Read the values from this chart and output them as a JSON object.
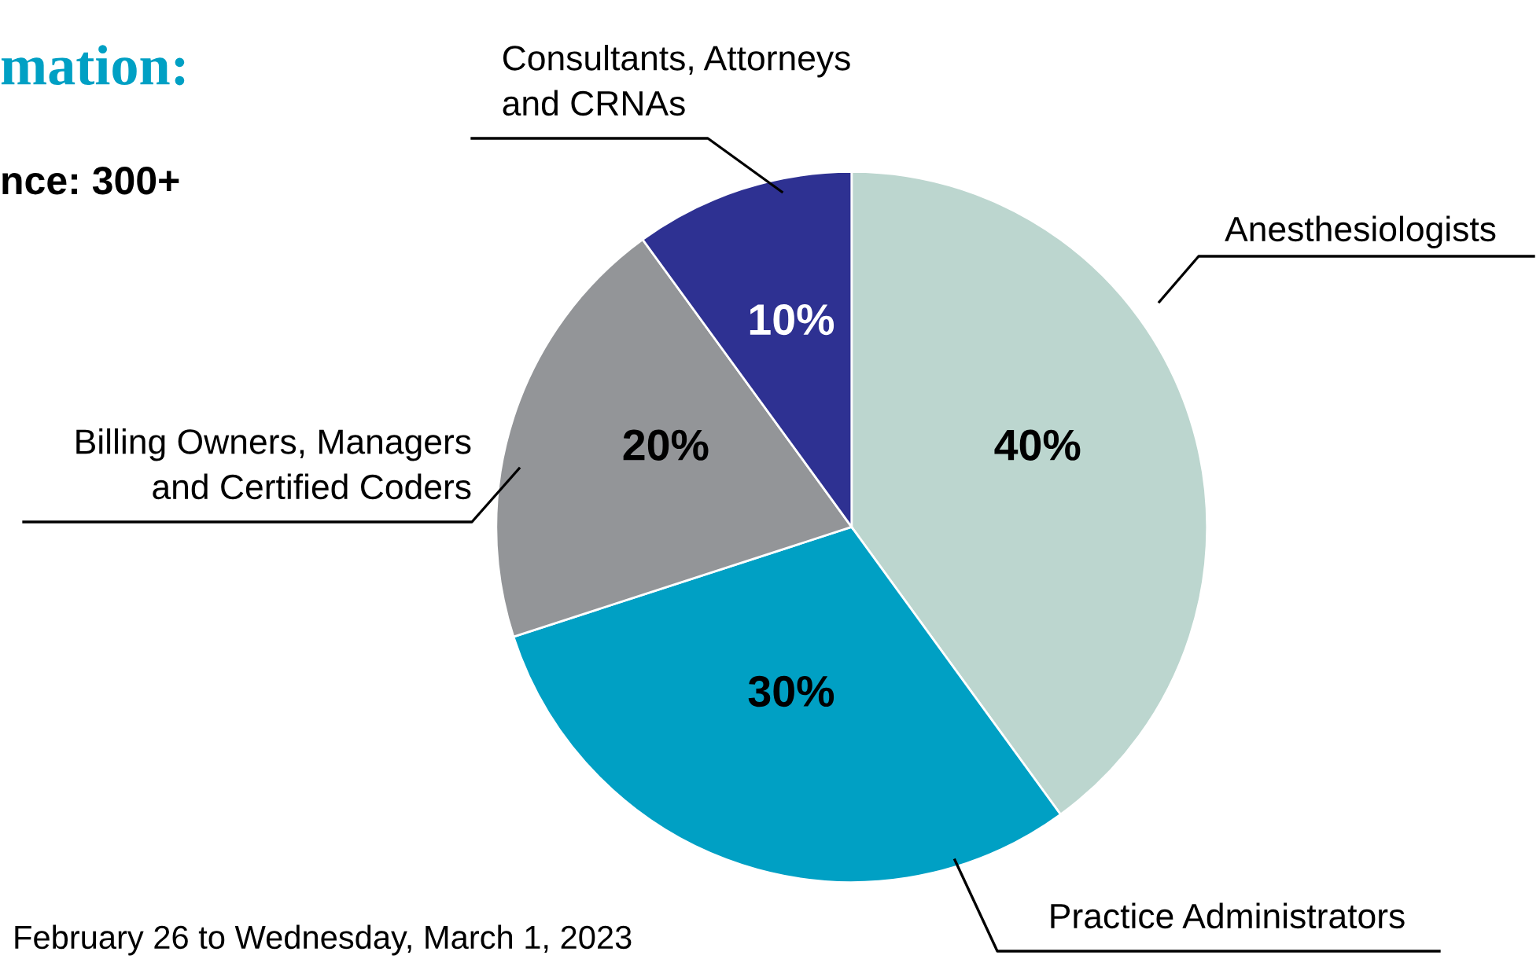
{
  "chart_data": {
    "type": "pie",
    "title": "mation:",
    "subtitle": "nce: 300+",
    "categories": [
      "Anesthesiologists",
      "Practice Administrators",
      "Billing Owners, Managers\nand Certified Coders",
      "Consultants, Attorneys\nand CRNAs"
    ],
    "values": [
      40,
      30,
      20,
      10
    ],
    "colors": [
      "#bcd6cf",
      "#00a0c4",
      "#939598",
      "#2e3192"
    ],
    "value_labels": [
      "40%",
      "30%",
      "20%",
      "10%"
    ],
    "annotations": [
      "February 26 to Wednesday, March 1, 2023"
    ]
  }
}
